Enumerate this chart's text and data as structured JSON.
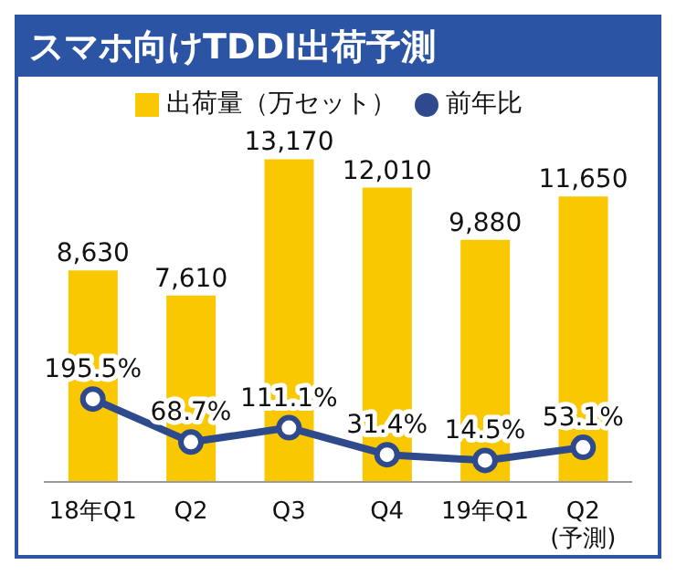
{
  "chart_data": {
    "type": "bar",
    "title": "スマホ向けTDDI出荷予測",
    "categories": [
      "18年Q1",
      "Q2",
      "Q3",
      "Q4",
      "19年Q1",
      "Q2\n(予測)"
    ],
    "series": [
      {
        "name": "出荷量（万セット）",
        "color": "#f9c800",
        "values": [
          8630,
          7610,
          13170,
          12010,
          9880,
          11650
        ],
        "value_labels": [
          "8,630",
          "7,610",
          "13,170",
          "12,010",
          "9,880",
          "11,650"
        ]
      },
      {
        "name": "前年比",
        "type": "line",
        "axis": "y2",
        "color": "#2e4a8c",
        "values": [
          195.5,
          68.7,
          111.1,
          31.4,
          14.5,
          53.1
        ],
        "value_labels": [
          "195.5%",
          "68.7%",
          "111.1%",
          "31.4%",
          "14.5%",
          "53.1%"
        ]
      }
    ],
    "legend": "top",
    "marker": "circle",
    "line_style": "solid",
    "tick_labels": "x"
  }
}
